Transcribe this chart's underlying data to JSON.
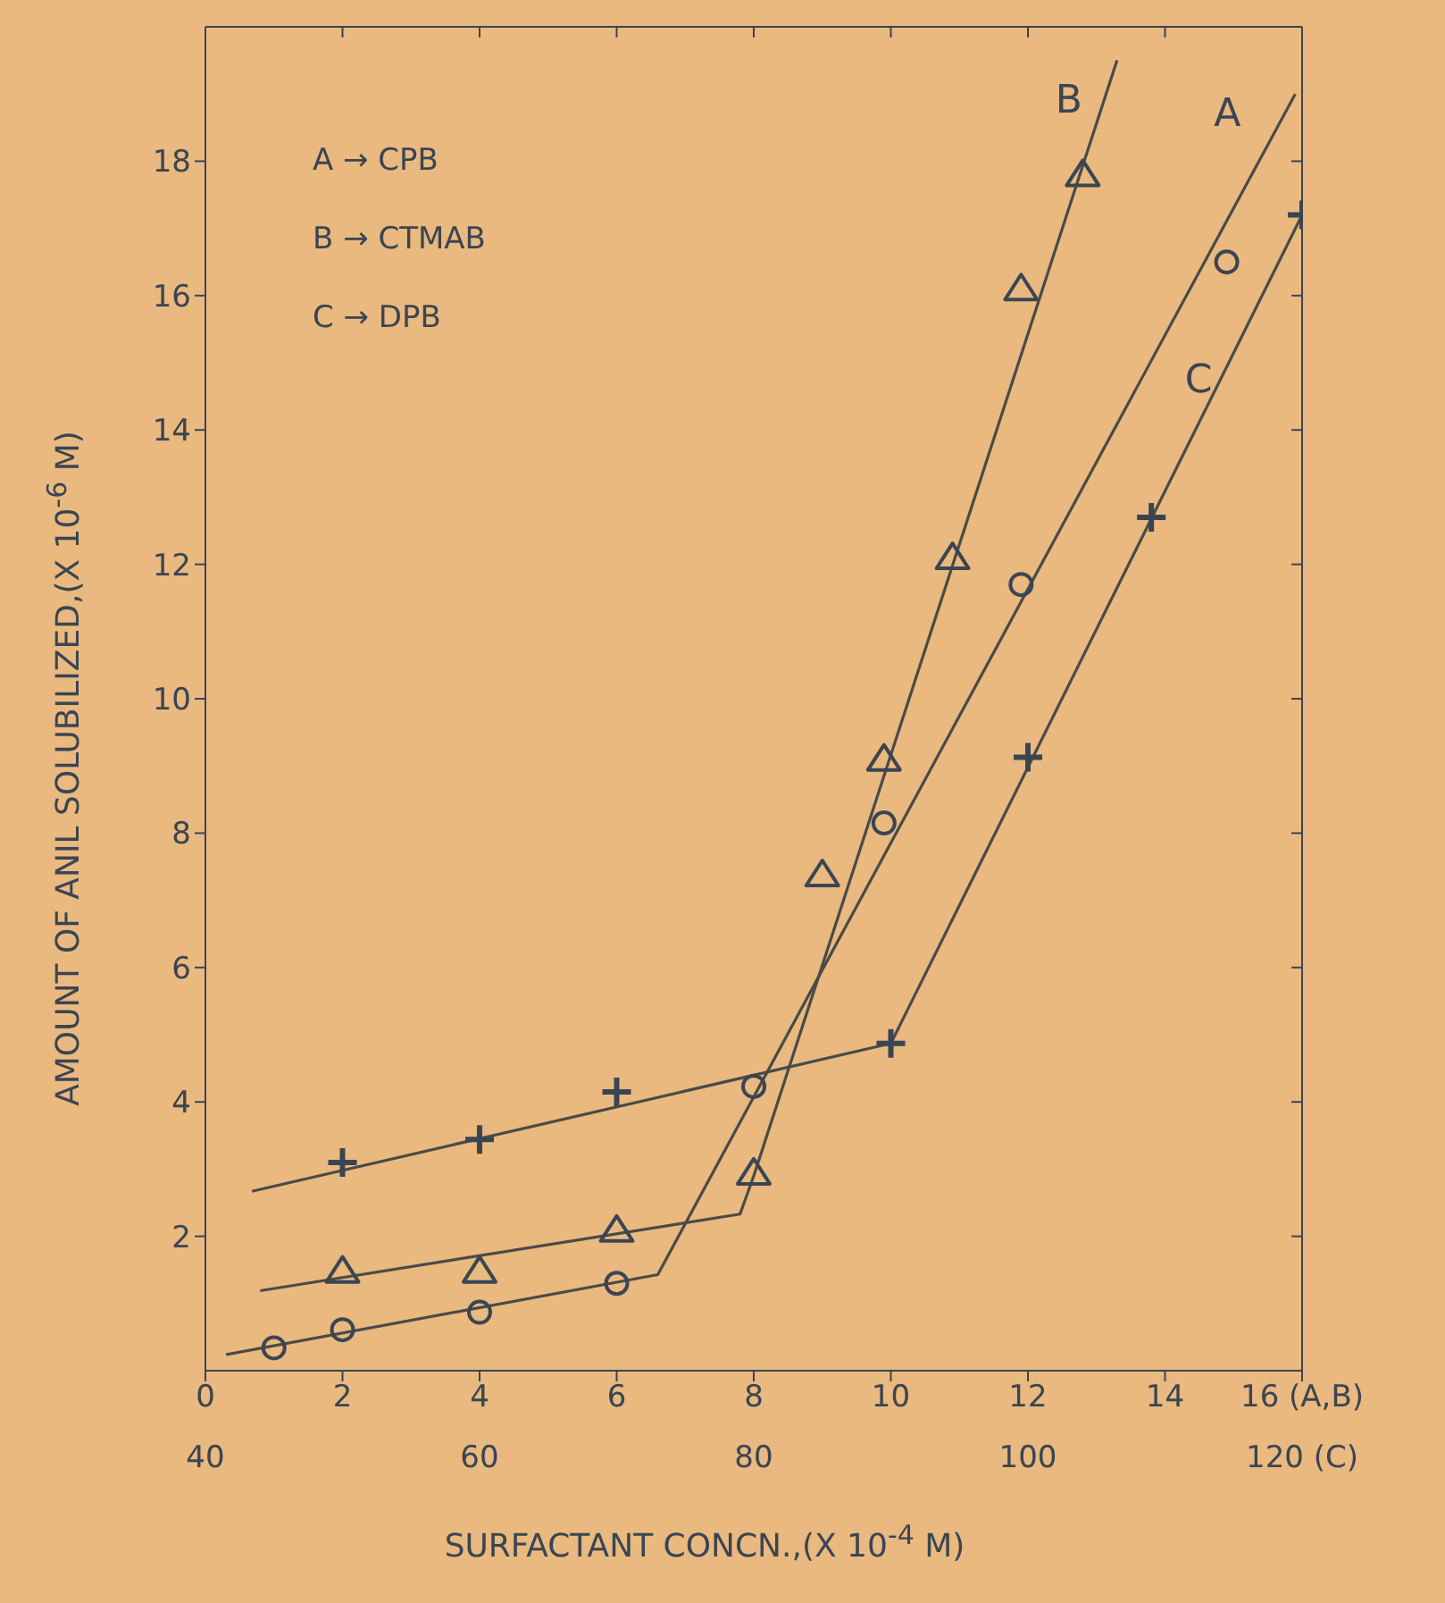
{
  "chart_data": {
    "type": "scatter",
    "xlabel": "SURFACTANT CONCN.,(X 10$^{-4}$ M)",
    "ylabel": "AMOUNT OF ANIL SOLUBILIZED,(X 10$^{-6}$ M)",
    "xlim": [
      0,
      16
    ],
    "xticks": [
      0,
      2,
      4,
      6,
      8,
      10,
      12,
      14,
      {
        "value": 16,
        "label": "16 (A,B)"
      }
    ],
    "x2lim": [
      40,
      120
    ],
    "x2ticks": [
      40,
      60,
      80,
      100,
      {
        "value": 120,
        "label": "120 (C)"
      }
    ],
    "ylim": [
      0,
      20
    ],
    "yticks": [
      2,
      4,
      6,
      8,
      10,
      12,
      14,
      16,
      18
    ],
    "grid": false,
    "series": [
      {
        "marker": "circle",
        "color": "#3b4552",
        "x": [
          1,
          2,
          4,
          6,
          8,
          9.9,
          11.9,
          14.9
        ],
        "values": [
          0.34,
          0.61,
          0.87,
          1.3,
          4.23,
          8.15,
          11.7,
          16.5
        ]
      },
      {
        "marker": "triangle",
        "color": "#3b4552",
        "x": [
          2,
          4,
          6,
          8,
          9,
          9.9,
          10.9,
          11.9,
          12.8
        ],
        "values": [
          1.48,
          1.48,
          2.09,
          2.94,
          7.38,
          9.1,
          12.1,
          16.1,
          17.8
        ]
      },
      {
        "marker": "cross",
        "axis": "x2",
        "color": "#3b4552",
        "x": [
          50,
          60,
          70,
          90,
          100,
          109,
          120
        ],
        "values": [
          3.1,
          3.44,
          4.15,
          4.87,
          9.13,
          12.7,
          17.2
        ]
      },
      {
        "type": "line",
        "name": "A",
        "marker": "none",
        "color": "#4a4a48",
        "x": [
          0.3,
          6.6,
          15.9
        ],
        "values": [
          0.24,
          1.43,
          19.0
        ]
      },
      {
        "type": "line",
        "name": "B",
        "marker": "none",
        "color": "#4a4a48",
        "x": [
          0.8,
          7.8,
          8.0,
          13.3
        ],
        "values": [
          1.19,
          2.33,
          2.9,
          19.5
        ]
      },
      {
        "type": "line",
        "name": "C",
        "marker": "none",
        "axis": "x2",
        "color": "#4a4a48",
        "x": [
          43.4,
          90,
          120
        ],
        "values": [
          2.67,
          4.87,
          17.2
        ]
      }
    ],
    "annotations": [
      "A → CPB",
      "B → CTMAB",
      "C → DPB"
    ]
  }
}
